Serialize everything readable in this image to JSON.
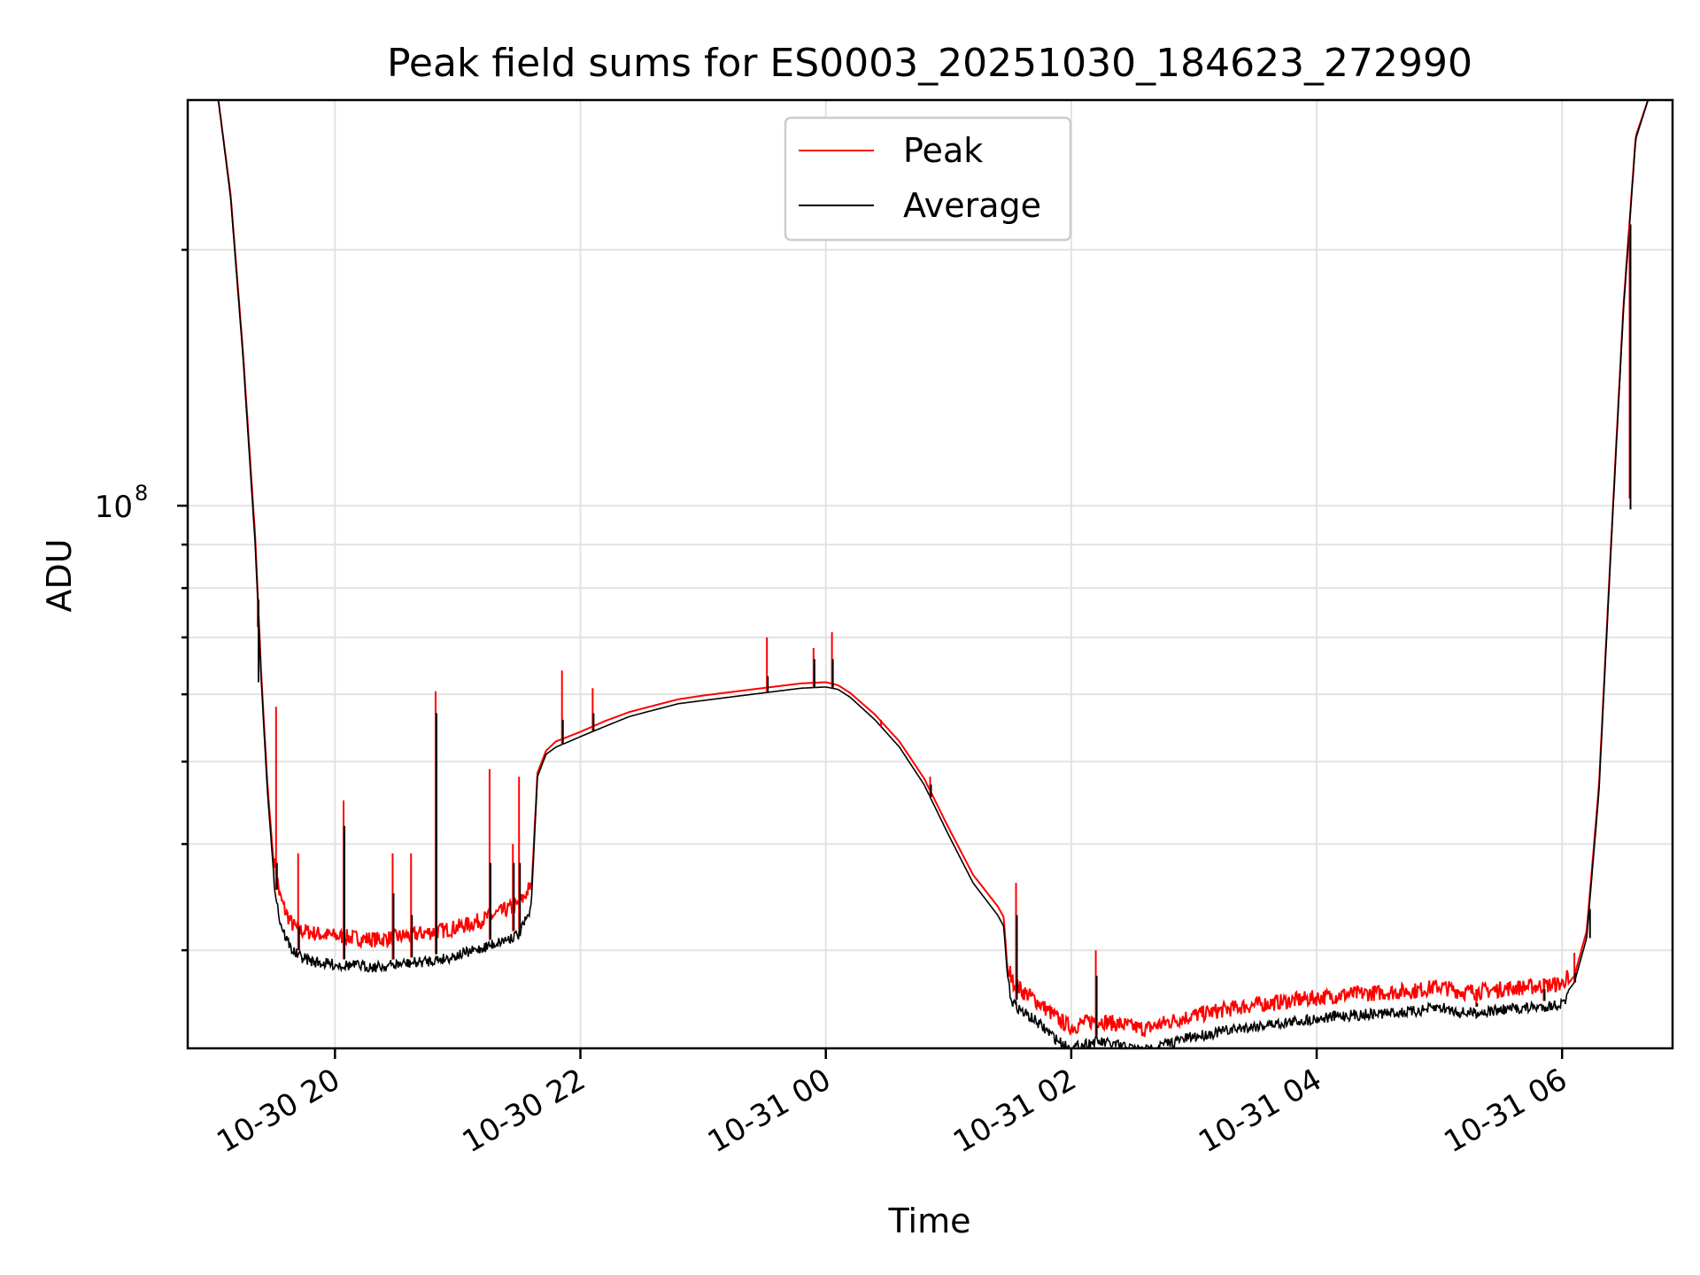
{
  "chart_data": {
    "type": "line",
    "title": "Peak field sums for ES0003_20251030_184623_272990",
    "xlabel": "Time",
    "ylabel": "ADU",
    "yscale": "log",
    "ylim": [
      23000000,
      300000000
    ],
    "xlim": [
      -1.2,
      10.9
    ],
    "x_unit": "hours since 2025-10-30 20:00",
    "x_ticks": [
      {
        "value": 0,
        "label": "10-30 20"
      },
      {
        "value": 2,
        "label": "10-30 22"
      },
      {
        "value": 4,
        "label": "10-31 00"
      },
      {
        "value": 6,
        "label": "10-31 02"
      },
      {
        "value": 8,
        "label": "10-31 04"
      },
      {
        "value": 10,
        "label": "10-31 06"
      }
    ],
    "y_major_ticks": [
      {
        "value": 100000000,
        "base": "10",
        "exp": "8"
      }
    ],
    "y_minor_ticks": [
      30000000,
      40000000,
      50000000,
      60000000,
      70000000,
      80000000,
      90000000,
      200000000
    ],
    "grid": true,
    "legend": {
      "position": "upper-center",
      "entries": [
        {
          "name": "Peak",
          "color": "#ff0000"
        },
        {
          "name": "Average",
          "color": "#000000"
        }
      ]
    },
    "series": [
      {
        "name": "Average",
        "color": "#000000",
        "x": [
          -1.2,
          -0.95,
          -0.85,
          -0.75,
          -0.65,
          -0.6,
          -0.55,
          -0.5,
          -0.45,
          -0.4,
          -0.35,
          -0.3,
          -0.2,
          -0.1,
          0.0,
          0.2,
          0.35,
          0.5,
          0.7,
          0.9,
          1.1,
          1.3,
          1.5,
          1.6,
          1.65,
          1.72,
          1.8,
          2.0,
          2.2,
          2.4,
          2.6,
          2.8,
          3.0,
          3.2,
          3.4,
          3.6,
          3.8,
          4.0,
          4.1,
          4.2,
          4.4,
          4.6,
          4.8,
          5.0,
          5.2,
          5.4,
          5.45,
          5.48,
          5.52,
          5.6,
          5.7,
          5.8,
          5.9,
          6.0,
          6.1,
          6.2,
          6.4,
          6.6,
          6.8,
          7.0,
          7.2,
          7.4,
          7.6,
          7.8,
          8.0,
          8.2,
          8.4,
          8.6,
          8.8,
          9.0,
          9.2,
          9.4,
          9.6,
          9.8,
          10.0,
          10.1,
          10.2,
          10.3,
          10.4,
          10.5,
          10.6,
          10.7,
          10.8,
          10.9
        ],
        "values": [
          300000000,
          300000000,
          230000000,
          150000000,
          90000000,
          62000000,
          46000000,
          37000000,
          33000000,
          31500000,
          30500000,
          30000000,
          29600000,
          29400000,
          29300000,
          29200000,
          29100000,
          29300000,
          29500000,
          29800000,
          30300000,
          31000000,
          31800000,
          34000000,
          48000000,
          51000000,
          52000000,
          53500000,
          55000000,
          56500000,
          57500000,
          58500000,
          59000000,
          59500000,
          60000000,
          60500000,
          61000000,
          61200000,
          60800000,
          59500000,
          56000000,
          52000000,
          47000000,
          41000000,
          36000000,
          33000000,
          32000000,
          28000000,
          26500000,
          25800000,
          25200000,
          24500000,
          23800000,
          23300000,
          23600000,
          23800000,
          23500000,
          23200000,
          23700000,
          24100000,
          24400000,
          24700000,
          24900000,
          25100000,
          25300000,
          25500000,
          25600000,
          25700000,
          25800000,
          26100000,
          25700000,
          25800000,
          26000000,
          26100000,
          26300000,
          27500000,
          31000000,
          46000000,
          90000000,
          170000000,
          270000000,
          300000000,
          300000000,
          300000000
        ]
      },
      {
        "name": "Peak",
        "color": "#ff0000",
        "x": [
          -1.2,
          -0.95,
          -0.85,
          -0.75,
          -0.65,
          -0.6,
          -0.55,
          -0.5,
          -0.45,
          -0.4,
          -0.35,
          -0.3,
          -0.2,
          -0.1,
          0.0,
          0.2,
          0.35,
          0.5,
          0.7,
          0.9,
          1.1,
          1.3,
          1.5,
          1.6,
          1.65,
          1.72,
          1.8,
          2.0,
          2.2,
          2.4,
          2.6,
          2.8,
          3.0,
          3.2,
          3.4,
          3.6,
          3.8,
          4.0,
          4.1,
          4.2,
          4.4,
          4.6,
          4.8,
          5.0,
          5.2,
          5.4,
          5.45,
          5.48,
          5.52,
          5.6,
          5.7,
          5.8,
          5.9,
          6.0,
          6.1,
          6.2,
          6.4,
          6.6,
          6.8,
          7.0,
          7.2,
          7.4,
          7.6,
          7.8,
          8.0,
          8.2,
          8.4,
          8.6,
          8.8,
          9.0,
          9.2,
          9.4,
          9.6,
          9.8,
          10.0,
          10.1,
          10.2,
          10.3,
          10.4,
          10.5,
          10.6,
          10.7,
          10.8,
          10.9
        ],
        "values": [
          300000000,
          300000000,
          232000000,
          152000000,
          92000000,
          63000000,
          47000000,
          38000000,
          34000000,
          32500000,
          31500000,
          31000000,
          30800000,
          30600000,
          30500000,
          30300000,
          30200000,
          30400000,
          30700000,
          31000000,
          31500000,
          32300000,
          33200000,
          35000000,
          48500000,
          51500000,
          52800000,
          54200000,
          55800000,
          57200000,
          58200000,
          59200000,
          59800000,
          60300000,
          60800000,
          61300000,
          61800000,
          62000000,
          61500000,
          60200000,
          56800000,
          52800000,
          47800000,
          41800000,
          36800000,
          33800000,
          32800000,
          28500000,
          27000000,
          26300000,
          25700000,
          25000000,
          24300000,
          23800000,
          24100000,
          24300000,
          24000000,
          23700000,
          24200000,
          24600000,
          24900000,
          25200000,
          25400000,
          25600000,
          25800000,
          26000000,
          26100000,
          26200000,
          26300000,
          26600000,
          26200000,
          26300000,
          26500000,
          26600000,
          26800000,
          28000000,
          31600000,
          46800000,
          91000000,
          172000000,
          272000000,
          300000000,
          300000000,
          300000000
        ]
      }
    ],
    "spikes": [
      {
        "x": -0.63,
        "peak": 72000000,
        "average": 62000000
      },
      {
        "x": -0.48,
        "peak": 58000000,
        "average": 38000000
      },
      {
        "x": -0.3,
        "peak": 39000000,
        "average": 32000000
      },
      {
        "x": 0.07,
        "peak": 45000000,
        "average": 42000000
      },
      {
        "x": 0.47,
        "peak": 39000000,
        "average": 35000000
      },
      {
        "x": 0.62,
        "peak": 39000000,
        "average": 33000000
      },
      {
        "x": 0.82,
        "peak": 60500000,
        "average": 57000000
      },
      {
        "x": 1.26,
        "peak": 49000000,
        "average": 38000000
      },
      {
        "x": 1.45,
        "peak": 40000000,
        "average": 38000000
      },
      {
        "x": 1.5,
        "peak": 48000000,
        "average": 38000000
      },
      {
        "x": 1.85,
        "peak": 64000000,
        "average": 56000000
      },
      {
        "x": 2.1,
        "peak": 61000000,
        "average": 57000000
      },
      {
        "x": 3.52,
        "peak": 70000000,
        "average": 63000000
      },
      {
        "x": 3.9,
        "peak": 68000000,
        "average": 66000000
      },
      {
        "x": 4.05,
        "peak": 71000000,
        "average": 66000000
      },
      {
        "x": 4.45,
        "peak": 56000000,
        "average": 55000000
      },
      {
        "x": 4.85,
        "peak": 48000000,
        "average": 47000000
      },
      {
        "x": 5.55,
        "peak": 36000000,
        "average": 33000000
      },
      {
        "x": 6.2,
        "peak": 30000000,
        "average": 28000000
      },
      {
        "x": 9.3,
        "peak": 27000000,
        "average": 26000000
      },
      {
        "x": 9.85,
        "peak": 27800000,
        "average": 27000000
      },
      {
        "x": 10.1,
        "peak": 29800000,
        "average": 28200000
      },
      {
        "x": 10.22,
        "peak": 33500000,
        "average": 31000000
      },
      {
        "x": 10.55,
        "peak": 102000000,
        "average": 99000000
      }
    ]
  }
}
